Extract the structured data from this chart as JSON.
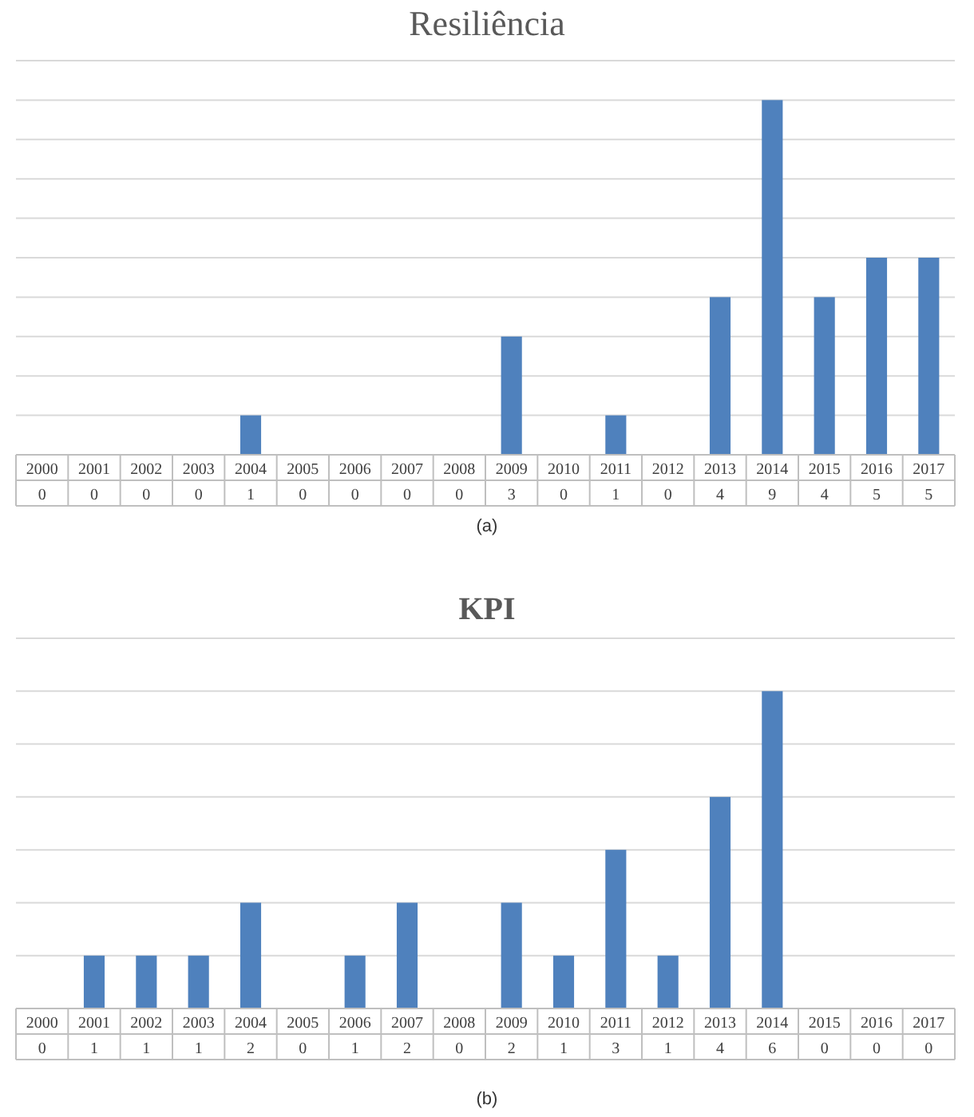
{
  "chart_data": [
    {
      "type": "bar",
      "title": "Resiliência",
      "categories": [
        "2000",
        "2001",
        "2002",
        "2003",
        "2004",
        "2005",
        "2006",
        "2007",
        "2008",
        "2009",
        "2010",
        "2011",
        "2012",
        "2013",
        "2014",
        "2015",
        "2016",
        "2017"
      ],
      "values": [
        0,
        0,
        0,
        0,
        1,
        0,
        0,
        0,
        0,
        3,
        0,
        1,
        0,
        4,
        9,
        4,
        5,
        5
      ],
      "color": "#4f81bd",
      "ylim": [
        0,
        10
      ],
      "yticks": [
        {
          "value": 0,
          "label": null
        },
        {
          "value": 1,
          "label": null
        },
        {
          "value": 2,
          "label": null
        },
        {
          "value": 3,
          "label": null
        },
        {
          "value": 4,
          "label": null
        },
        {
          "value": 5,
          "label": null
        },
        {
          "value": 6,
          "label": null
        },
        {
          "value": 7,
          "label": null
        },
        {
          "value": 8,
          "label": null
        },
        {
          "value": 9,
          "label": null
        },
        {
          "value": 10,
          "label": null
        }
      ],
      "grid": "y",
      "tick_labels": "x",
      "data_labels": true,
      "annotations": [
        "(a)"
      ]
    },
    {
      "type": "bar",
      "title": "KPI",
      "categories": [
        "2000",
        "2001",
        "2002",
        "2003",
        "2004",
        "2005",
        "2006",
        "2007",
        "2008",
        "2009",
        "2010",
        "2011",
        "2012",
        "2013",
        "2014",
        "2015",
        "2016",
        "2017"
      ],
      "values": [
        0,
        1,
        1,
        1,
        2,
        0,
        1,
        2,
        0,
        2,
        1,
        3,
        1,
        4,
        6,
        0,
        0,
        0
      ],
      "color": "#4f81bd",
      "ylim": [
        0,
        7
      ],
      "yticks": [
        {
          "value": 0,
          "label": null
        },
        {
          "value": 1,
          "label": null
        },
        {
          "value": 2,
          "label": null
        },
        {
          "value": 3,
          "label": null
        },
        {
          "value": 4,
          "label": null
        },
        {
          "value": 5,
          "label": null
        },
        {
          "value": 6,
          "label": null
        },
        {
          "value": 7,
          "label": null
        }
      ],
      "grid": "y",
      "tick_labels": "x",
      "data_labels": true,
      "annotations": [
        "(b)"
      ]
    }
  ]
}
